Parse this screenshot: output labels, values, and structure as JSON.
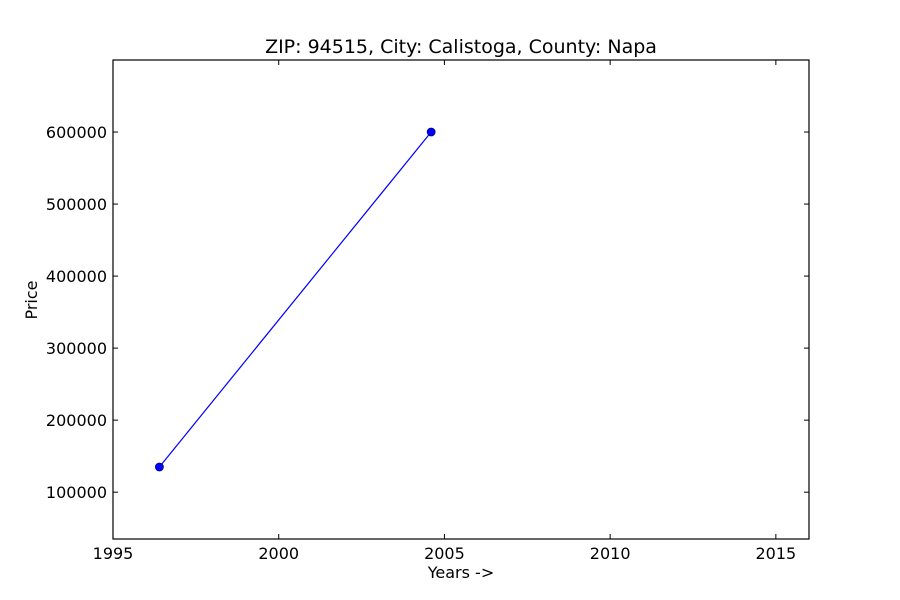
{
  "chart_data": {
    "type": "line",
    "title": "ZIP: 94515, City: Calistoga, County: Napa",
    "xlabel": "Years ->",
    "ylabel": "Price",
    "xlim": [
      1995,
      2016
    ],
    "ylim": [
      35000,
      700000
    ],
    "x_ticks": [
      1995,
      2000,
      2005,
      2010,
      2015
    ],
    "y_ticks": [
      100000,
      200000,
      300000,
      400000,
      500000,
      600000
    ],
    "grid": false,
    "legend": "none",
    "series": [
      {
        "color": "#0000ff",
        "marker": "circle",
        "points": [
          {
            "x": 1996.4,
            "y": 135000
          },
          {
            "x": 2004.6,
            "y": 600000
          }
        ]
      }
    ]
  }
}
